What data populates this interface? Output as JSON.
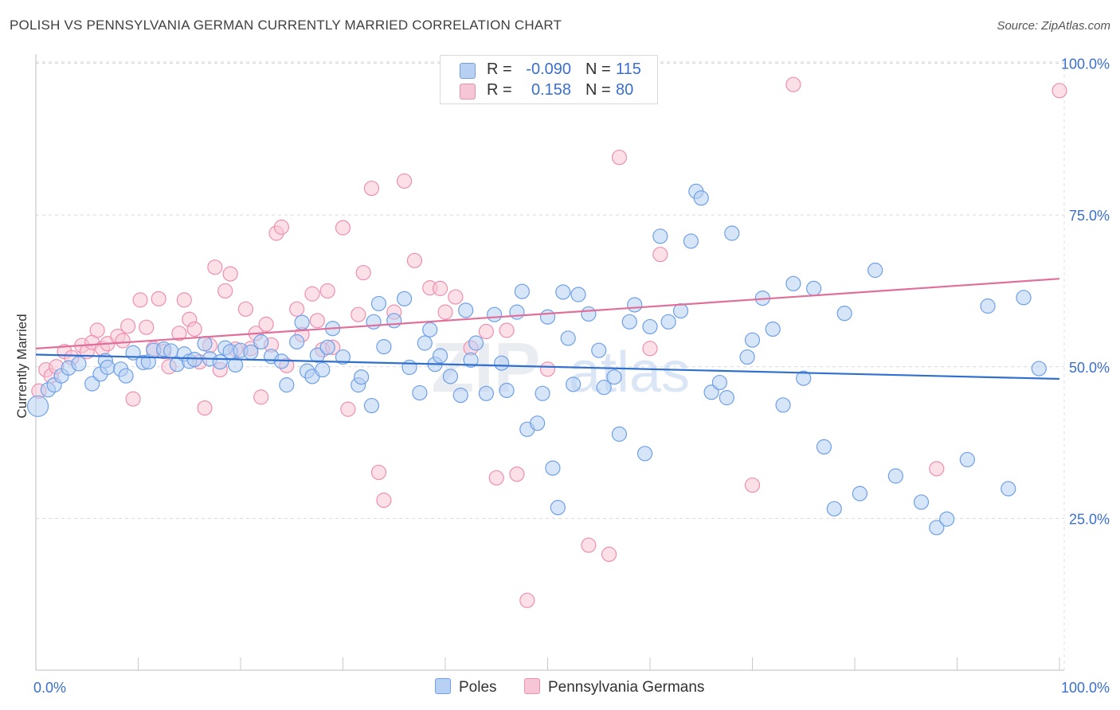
{
  "header": {
    "title": "POLISH VS PENNSYLVANIA GERMAN CURRENTLY MARRIED CORRELATION CHART",
    "source": "Source: ZipAtlas.com"
  },
  "colors": {
    "poles": "#6fa0e6",
    "poles_fill": "#b7d0f3",
    "poles_line": "#2f6fce",
    "pagermans": "#ee8fb0",
    "pagermans_fill": "#f7c6d6",
    "pagermans_line": "#e0709a",
    "tick_label": "#3a6fd0"
  },
  "legend_top": {
    "rows": [
      {
        "r_label": "R =",
        "r_value": "-0.090",
        "n_label": "N =",
        "n_value": "115"
      },
      {
        "r_label": "R =",
        "r_value": "0.158",
        "n_label": "N =",
        "n_value": "80"
      }
    ]
  },
  "legend_bottom": {
    "items": [
      {
        "label": "Poles"
      },
      {
        "label": "Pennsylvania Germans"
      }
    ]
  },
  "watermark": {
    "zip": "ZIP",
    "atlas": "atlas"
  },
  "chart_data": {
    "type": "scatter",
    "ylabel": "Currently Married",
    "xlim": [
      0,
      100
    ],
    "ylim": [
      0,
      105
    ],
    "x_tick_labels": [
      {
        "value": 0,
        "label": "0.0%"
      },
      {
        "value": 100,
        "label": "100.0%"
      }
    ],
    "y_tick_labels": [
      {
        "value": 25,
        "label": "25.0%"
      },
      {
        "value": 50,
        "label": "50.0%"
      },
      {
        "value": 75,
        "label": "75.0%"
      },
      {
        "value": 100,
        "label": "100.0%"
      }
    ],
    "grid": true,
    "series": [
      {
        "name": "Poles",
        "trend": {
          "x": [
            0,
            100
          ],
          "y": [
            52.0,
            48.0
          ]
        },
        "points": [
          [
            0.2,
            43.5
          ],
          [
            1.2,
            46.2
          ],
          [
            1.8,
            47.0
          ],
          [
            2.5,
            48.5
          ],
          [
            3.2,
            49.8
          ],
          [
            4.2,
            50.5
          ],
          [
            5.5,
            47.2
          ],
          [
            6.3,
            48.8
          ],
          [
            6.8,
            51.0
          ],
          [
            7.0,
            49.9
          ],
          [
            8.3,
            49.6
          ],
          [
            8.8,
            48.5
          ],
          [
            9.5,
            52.3
          ],
          [
            10.5,
            50.7
          ],
          [
            11.0,
            50.8
          ],
          [
            11.5,
            52.7
          ],
          [
            12.5,
            52.9
          ],
          [
            13.2,
            52.6
          ],
          [
            13.8,
            50.4
          ],
          [
            14.5,
            52.1
          ],
          [
            15.0,
            50.9
          ],
          [
            15.5,
            51.2
          ],
          [
            16.5,
            53.8
          ],
          [
            17.0,
            51.3
          ],
          [
            18.0,
            50.8
          ],
          [
            18.5,
            53.1
          ],
          [
            19.0,
            52.5
          ],
          [
            19.5,
            50.3
          ],
          [
            20.0,
            52.7
          ],
          [
            21.0,
            52.4
          ],
          [
            22.0,
            54.1
          ],
          [
            23.0,
            51.7
          ],
          [
            24.0,
            50.9
          ],
          [
            24.5,
            47.0
          ],
          [
            25.5,
            54.1
          ],
          [
            26.0,
            57.3
          ],
          [
            26.5,
            49.3
          ],
          [
            27.0,
            48.4
          ],
          [
            27.5,
            51.9
          ],
          [
            28.0,
            49.5
          ],
          [
            28.5,
            53.2
          ],
          [
            29.0,
            56.3
          ],
          [
            30.0,
            51.6
          ],
          [
            31.5,
            47.0
          ],
          [
            31.8,
            48.3
          ],
          [
            32.8,
            43.6
          ],
          [
            33.0,
            57.4
          ],
          [
            33.5,
            60.4
          ],
          [
            34.0,
            53.3
          ],
          [
            35.0,
            57.6
          ],
          [
            36.0,
            61.2
          ],
          [
            36.5,
            49.9
          ],
          [
            37.5,
            45.7
          ],
          [
            38.0,
            53.9
          ],
          [
            38.5,
            56.1
          ],
          [
            39.0,
            50.4
          ],
          [
            39.5,
            51.8
          ],
          [
            40.5,
            48.4
          ],
          [
            41.5,
            45.3
          ],
          [
            42.0,
            59.3
          ],
          [
            42.5,
            51.1
          ],
          [
            43.0,
            53.9
          ],
          [
            44.0,
            45.6
          ],
          [
            44.8,
            58.6
          ],
          [
            45.5,
            50.6
          ],
          [
            46.0,
            46.1
          ],
          [
            47.0,
            59.0
          ],
          [
            47.5,
            62.4
          ],
          [
            48.0,
            39.7
          ],
          [
            49.0,
            40.7
          ],
          [
            49.5,
            45.6
          ],
          [
            50.0,
            58.2
          ],
          [
            50.5,
            33.3
          ],
          [
            51.0,
            26.8
          ],
          [
            51.5,
            62.3
          ],
          [
            52.0,
            54.7
          ],
          [
            52.5,
            47.1
          ],
          [
            53.0,
            61.9
          ],
          [
            54.0,
            58.7
          ],
          [
            55.0,
            52.7
          ],
          [
            55.5,
            46.6
          ],
          [
            56.5,
            48.3
          ],
          [
            57.0,
            38.9
          ],
          [
            58.0,
            57.4
          ],
          [
            58.5,
            60.2
          ],
          [
            59.5,
            35.7
          ],
          [
            60.0,
            56.6
          ],
          [
            61.0,
            71.5
          ],
          [
            61.8,
            57.4
          ],
          [
            63.0,
            59.2
          ],
          [
            64.0,
            70.7
          ],
          [
            64.5,
            78.9
          ],
          [
            65.0,
            77.8
          ],
          [
            66.0,
            45.8
          ],
          [
            66.8,
            47.4
          ],
          [
            67.5,
            44.9
          ],
          [
            68.0,
            72.0
          ],
          [
            69.5,
            51.6
          ],
          [
            70.0,
            54.4
          ],
          [
            71.0,
            61.3
          ],
          [
            72.0,
            56.2
          ],
          [
            73.0,
            43.7
          ],
          [
            74.0,
            63.7
          ],
          [
            75.0,
            48.1
          ],
          [
            76.0,
            62.9
          ],
          [
            77.0,
            36.8
          ],
          [
            78.0,
            26.6
          ],
          [
            79.0,
            58.8
          ],
          [
            80.5,
            29.1
          ],
          [
            82.0,
            65.9
          ],
          [
            84.0,
            32.0
          ],
          [
            86.5,
            27.7
          ],
          [
            88.0,
            23.5
          ],
          [
            89.0,
            24.9
          ],
          [
            91.0,
            34.7
          ],
          [
            93.0,
            60.0
          ],
          [
            95.0,
            29.9
          ],
          [
            96.5,
            61.4
          ],
          [
            98.0,
            49.7
          ]
        ]
      },
      {
        "name": "Pennsylvania Germans",
        "trend": {
          "x": [
            0,
            100
          ],
          "y": [
            53.0,
            64.5
          ]
        },
        "points": [
          [
            0.3,
            46.0
          ],
          [
            1.0,
            49.5
          ],
          [
            1.5,
            48.5
          ],
          [
            2.0,
            50.0
          ],
          [
            2.8,
            52.5
          ],
          [
            3.5,
            51.5
          ],
          [
            4.5,
            53.5
          ],
          [
            5.0,
            52.5
          ],
          [
            5.5,
            54.0
          ],
          [
            6.0,
            56.0
          ],
          [
            6.5,
            53.0
          ],
          [
            7.0,
            53.8
          ],
          [
            8.0,
            55.0
          ],
          [
            8.5,
            54.3
          ],
          [
            9.0,
            56.7
          ],
          [
            9.5,
            44.7
          ],
          [
            10.2,
            61.0
          ],
          [
            10.8,
            56.5
          ],
          [
            11.5,
            53.0
          ],
          [
            12.0,
            61.2
          ],
          [
            12.5,
            52.5
          ],
          [
            13.0,
            50.0
          ],
          [
            14.0,
            55.5
          ],
          [
            14.5,
            61.0
          ],
          [
            15.0,
            57.8
          ],
          [
            15.5,
            56.2
          ],
          [
            16.0,
            50.8
          ],
          [
            16.5,
            43.2
          ],
          [
            17.0,
            53.5
          ],
          [
            17.5,
            66.4
          ],
          [
            18.0,
            49.5
          ],
          [
            18.5,
            62.5
          ],
          [
            19.0,
            65.3
          ],
          [
            19.5,
            52.9
          ],
          [
            20.5,
            59.5
          ],
          [
            21.0,
            53.0
          ],
          [
            21.5,
            55.5
          ],
          [
            22.0,
            45.0
          ],
          [
            22.5,
            57.0
          ],
          [
            23.0,
            53.6
          ],
          [
            23.5,
            72.0
          ],
          [
            24.0,
            73.0
          ],
          [
            24.5,
            50.2
          ],
          [
            25.5,
            59.5
          ],
          [
            26.0,
            55.3
          ],
          [
            27.0,
            62.0
          ],
          [
            27.5,
            57.6
          ],
          [
            28.0,
            52.8
          ],
          [
            28.5,
            62.5
          ],
          [
            29.0,
            53.2
          ],
          [
            30.0,
            72.9
          ],
          [
            30.5,
            43.0
          ],
          [
            31.5,
            58.6
          ],
          [
            32.0,
            65.5
          ],
          [
            32.8,
            79.4
          ],
          [
            33.5,
            32.6
          ],
          [
            34.0,
            28.0
          ],
          [
            35.0,
            59.0
          ],
          [
            36.0,
            80.6
          ],
          [
            37.0,
            67.5
          ],
          [
            38.5,
            63.0
          ],
          [
            39.5,
            62.9
          ],
          [
            40.0,
            59.0
          ],
          [
            41.0,
            61.5
          ],
          [
            42.5,
            53.1
          ],
          [
            44.0,
            55.8
          ],
          [
            45.0,
            31.7
          ],
          [
            46.0,
            56.0
          ],
          [
            47.0,
            32.3
          ],
          [
            48.0,
            11.5
          ],
          [
            50.0,
            49.6
          ],
          [
            54.0,
            20.6
          ],
          [
            56.0,
            19.1
          ],
          [
            57.0,
            84.5
          ],
          [
            60.0,
            53.0
          ],
          [
            61.0,
            68.5
          ],
          [
            70.0,
            30.5
          ],
          [
            74.0,
            96.5
          ],
          [
            88.0,
            33.2
          ],
          [
            100.0,
            95.5
          ]
        ]
      }
    ]
  }
}
